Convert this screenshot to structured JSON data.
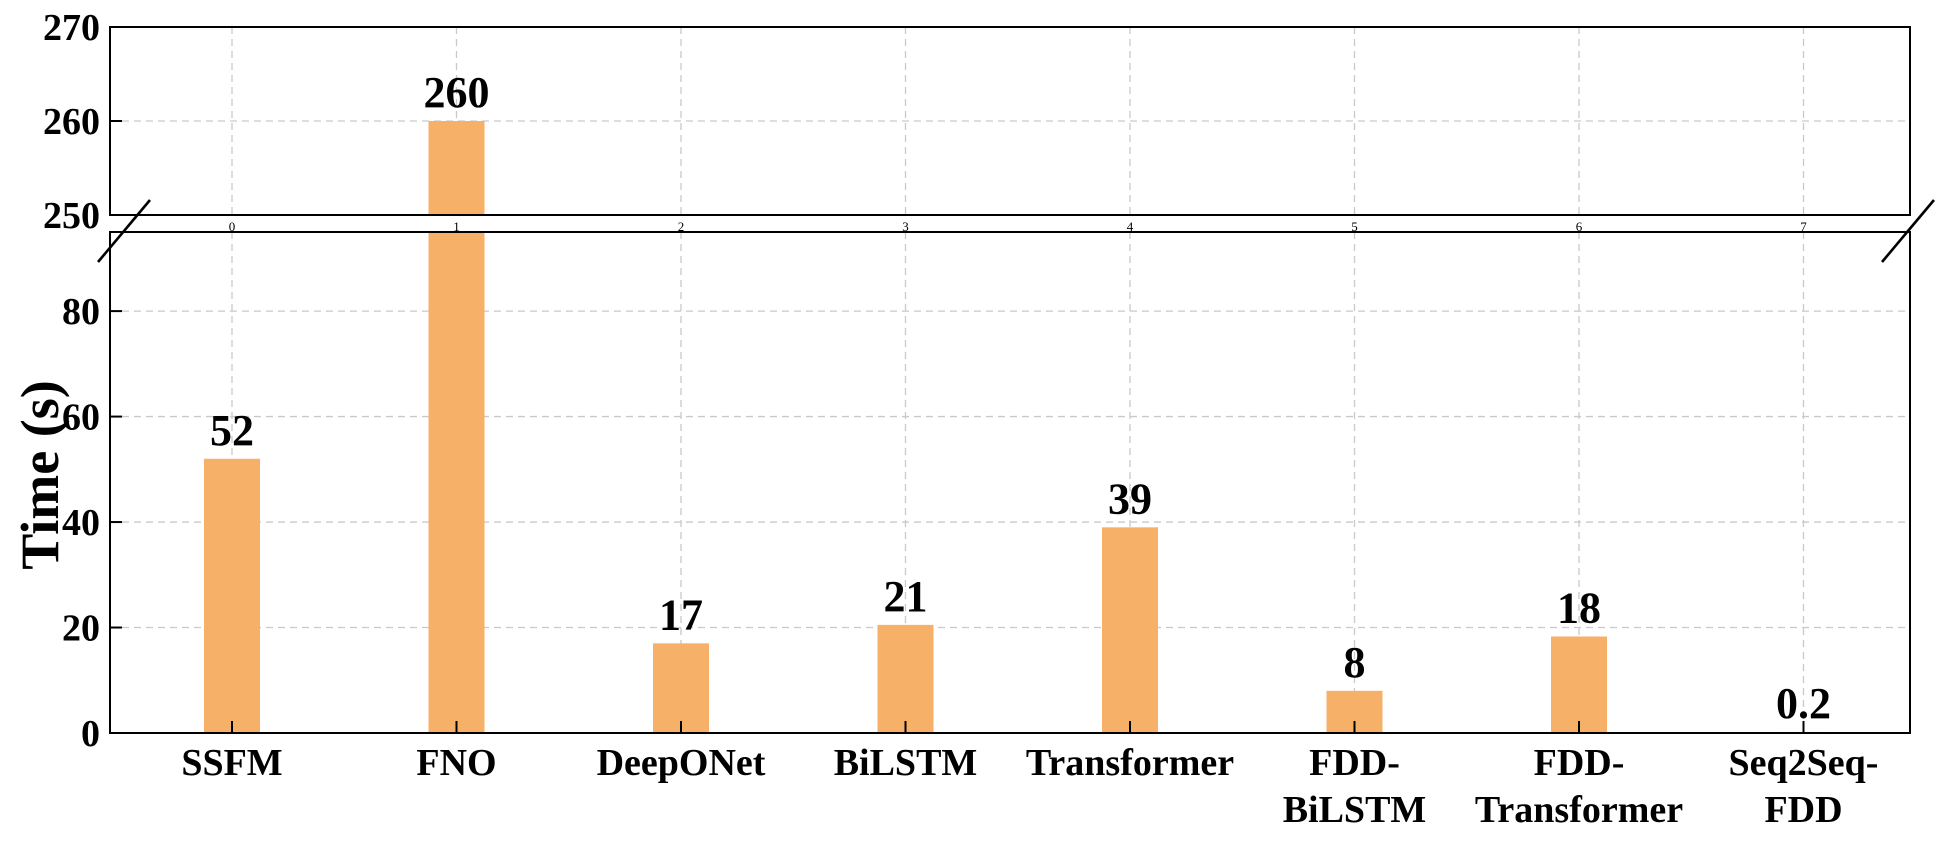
{
  "chart_data": {
    "type": "bar",
    "ylabel": "Time (s)",
    "categories": [
      [
        "SSFM"
      ],
      [
        "FNO"
      ],
      [
        "DeepONet"
      ],
      [
        "BiLSTM"
      ],
      [
        "Transformer"
      ],
      [
        "FDD-",
        "BiLSTM"
      ],
      [
        "FDD-",
        "Transformer"
      ],
      [
        "Seq2Seq-",
        "FDD"
      ]
    ],
    "values": [
      52,
      260,
      17,
      20.5,
      39,
      8,
      18.3,
      0.2
    ],
    "data_labels": [
      "52",
      "260",
      "17",
      "21",
      "39",
      "8",
      "18",
      "0.2"
    ],
    "bar_color": "#F7B067",
    "grid": true,
    "broken_axis": true,
    "lower_panel": {
      "ylim": [
        0,
        95
      ],
      "yticks": [
        "0",
        "20",
        "40",
        "60",
        "80"
      ]
    },
    "upper_panel": {
      "ylim": [
        250,
        270
      ],
      "yticks": [
        "250",
        "260",
        "270"
      ],
      "minor_xticks": [
        "0",
        "1",
        "2",
        "3",
        "4",
        "5",
        "6",
        "7"
      ]
    }
  }
}
